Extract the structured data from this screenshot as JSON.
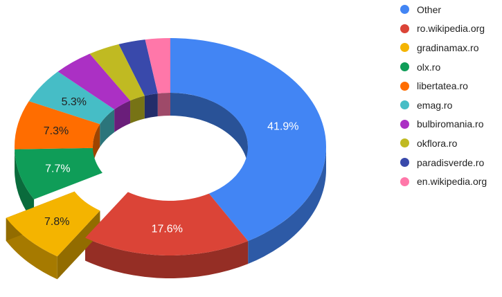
{
  "chart_data": {
    "type": "pie",
    "style": "3d-donut",
    "legend_position": "right",
    "exploded_slice": "gradinamax.ro",
    "slices": [
      {
        "label": "Other",
        "value": 41.9,
        "color": "#4285f4",
        "data_label": "41.9%",
        "label_color": "#ffffff"
      },
      {
        "label": "ro.wikipedia.org",
        "value": 17.6,
        "color": "#db4437",
        "data_label": "17.6%",
        "label_color": "#ffffff"
      },
      {
        "label": "gradinamax.ro",
        "value": 7.8,
        "color": "#f4b400",
        "data_label": "7.8%",
        "label_color": "#222222"
      },
      {
        "label": "olx.ro",
        "value": 7.7,
        "color": "#0f9d58",
        "data_label": "7.7%",
        "label_color": "#ffffff"
      },
      {
        "label": "libertatea.ro",
        "value": 7.3,
        "color": "#ff6d00",
        "data_label": "7.3%",
        "label_color": "#222222"
      },
      {
        "label": "emag.ro",
        "value": 5.3,
        "color": "#46bdc6",
        "data_label": "5.3%",
        "label_color": "#222222"
      },
      {
        "label": "bulbiromania.ro",
        "value": 4.2,
        "color": "#ab30c4",
        "data_label": "",
        "label_color": "#222222"
      },
      {
        "label": "okflora.ro",
        "value": 3.3,
        "color": "#c0ba22",
        "data_label": "",
        "label_color": "#222222"
      },
      {
        "label": "paradisverde.ro",
        "value": 2.8,
        "color": "#3949ab",
        "data_label": "",
        "label_color": "#222222"
      },
      {
        "label": "en.wikipedia.org",
        "value": 2.6,
        "color": "#ff77a9",
        "data_label": "",
        "label_color": "#222222"
      }
    ]
  }
}
